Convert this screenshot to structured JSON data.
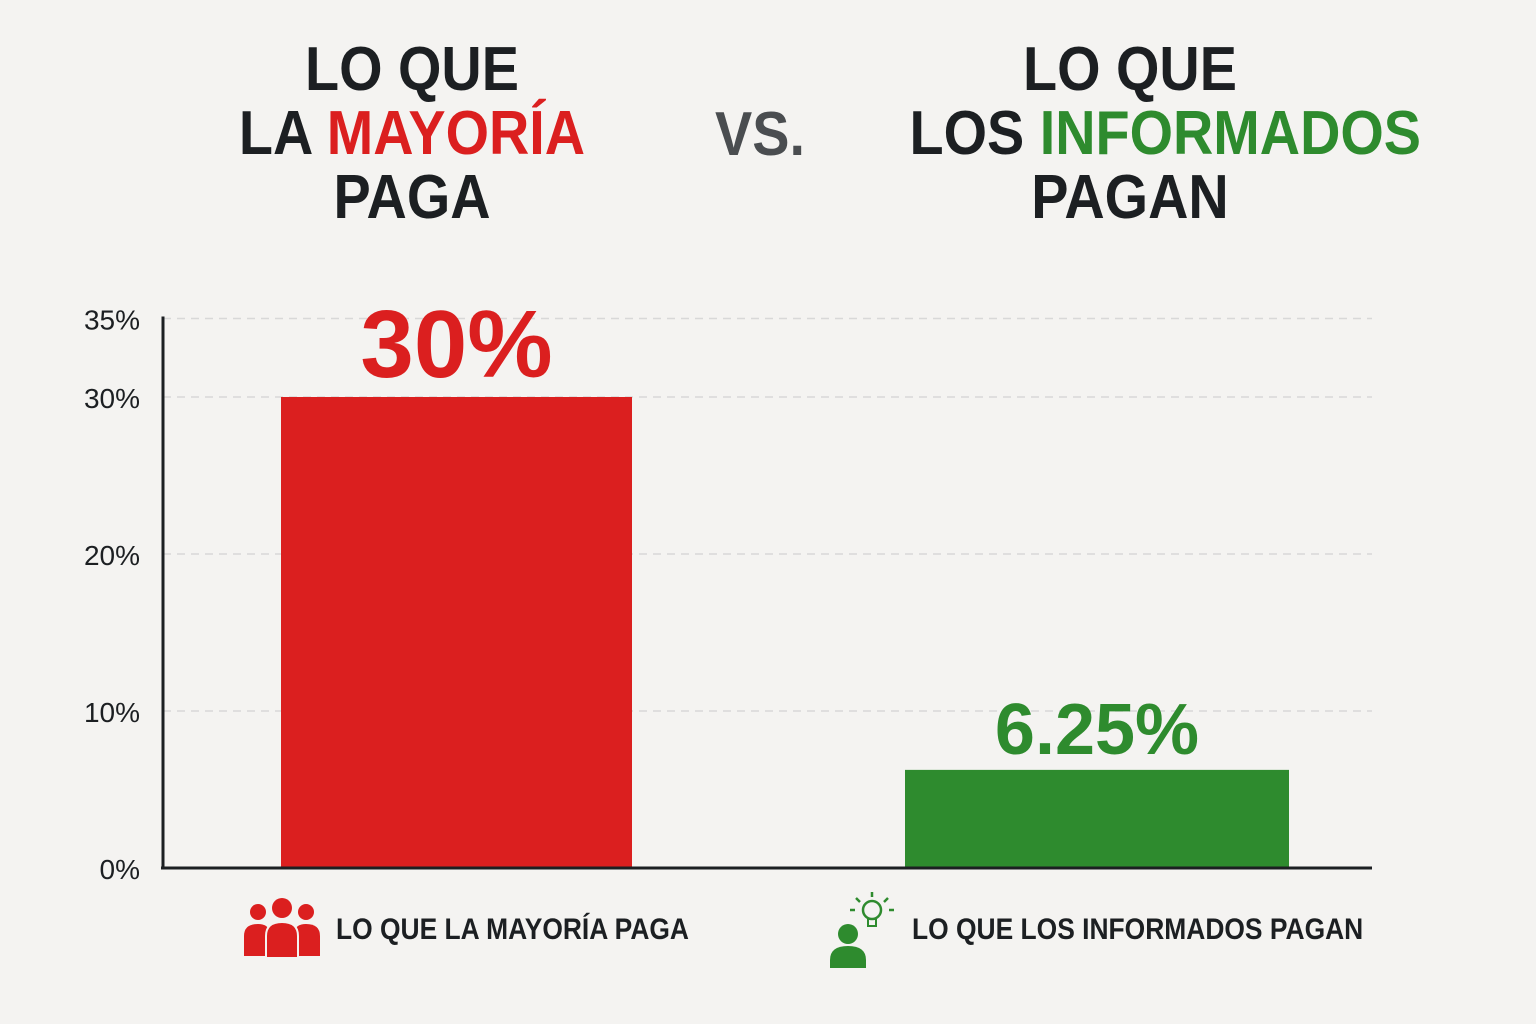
{
  "headline": {
    "left": {
      "line1": "LO QUE",
      "line2_prefix": "LA ",
      "line2_highlight": "MAYORÍA",
      "line3": "PAGA",
      "highlight_color": "#db1f1f"
    },
    "vs": "VS.",
    "right": {
      "line1": "LO QUE",
      "line2_prefix": "LOS ",
      "line2_highlight": "INFORMADOS",
      "line3": "PAGAN",
      "highlight_color": "#2e8b2e"
    }
  },
  "chart_data": {
    "type": "bar",
    "categories": [
      "LO QUE LA MAYORÍA PAGA",
      "LO QUE LOS INFORMADOS PAGAN"
    ],
    "values": [
      30,
      6.25
    ],
    "value_labels": [
      "30%",
      "6.25%"
    ],
    "colors": [
      "#db1f1f",
      "#2e8b2e"
    ],
    "ylim": [
      0,
      35
    ],
    "yticks": [
      0,
      10,
      20,
      30,
      35
    ],
    "ytick_labels": [
      "0%",
      "10%",
      "20%",
      "30%",
      "35%"
    ],
    "grid": true,
    "legend_position": "bottom"
  },
  "legend": {
    "left": {
      "label": "LO QUE LA MAYORÍA PAGA",
      "icon": "people-group-icon",
      "color": "#db1f1f"
    },
    "right": {
      "label": "LO QUE LOS INFORMADOS PAGAN",
      "icon": "person-lightbulb-icon",
      "color": "#2e8b2e"
    }
  }
}
